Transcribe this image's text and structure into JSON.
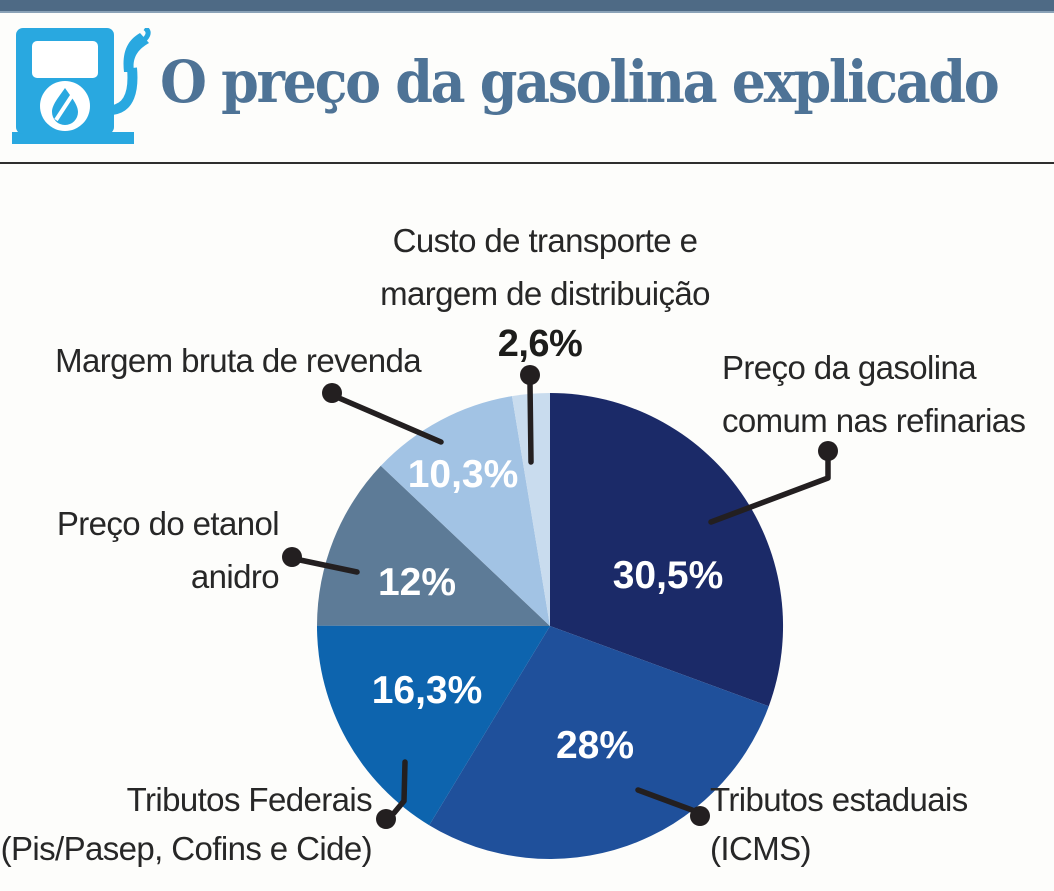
{
  "header": {
    "title": "O preço da gasolina explicado",
    "icon": "fuel-pump-icon",
    "accent_bar_color": "#4e6a85",
    "icon_color": "#29a8e0",
    "title_color": "#4e7396"
  },
  "chart_data": {
    "type": "pie",
    "title": "O preço da gasolina explicado",
    "unit": "%",
    "direction": "clockwise",
    "start_angle_deg": 0,
    "legend_position": "callout-labels",
    "slices": [
      {
        "label": "Preço da gasolina comum nas refinarias",
        "value": 30.5,
        "display": "30,5%",
        "color": "#1b2a68"
      },
      {
        "label": "Tributos estaduais (ICMS)",
        "value": 28,
        "display": "28%",
        "color": "#1f509b"
      },
      {
        "label": "Tributos Federais (Pis/Pasep, Cofins e Cide)",
        "value": 16.3,
        "display": "16,3%",
        "color": "#0d64ae"
      },
      {
        "label": "Preço do etanol anidro",
        "value": 12,
        "display": "12%",
        "color": "#5d7b97"
      },
      {
        "label": "Margem bruta de revenda",
        "value": 10.3,
        "display": "10,3%",
        "color": "#a2c3e4"
      },
      {
        "label": "Custo de transporte e margem de distribuição",
        "value": 2.6,
        "display": "2,6%",
        "color": "#c9dcee"
      }
    ]
  },
  "callouts": {
    "custo": {
      "line1": "Custo de transporte e",
      "line2": "margem de distribuição"
    },
    "margem": {
      "line1": "Margem bruta de revenda"
    },
    "refinarias": {
      "line1": "Preço da gasolina",
      "line2": "comum nas refinarias"
    },
    "etanol": {
      "line1": "Preço do etanol",
      "line2": "anidro"
    },
    "federais": {
      "line1": "Tributos Federais",
      "line2": "(Pis/Pasep, Cofins e Cide)"
    },
    "estaduais": {
      "line1": "Tributos estaduais",
      "line2": "(ICMS)"
    }
  }
}
